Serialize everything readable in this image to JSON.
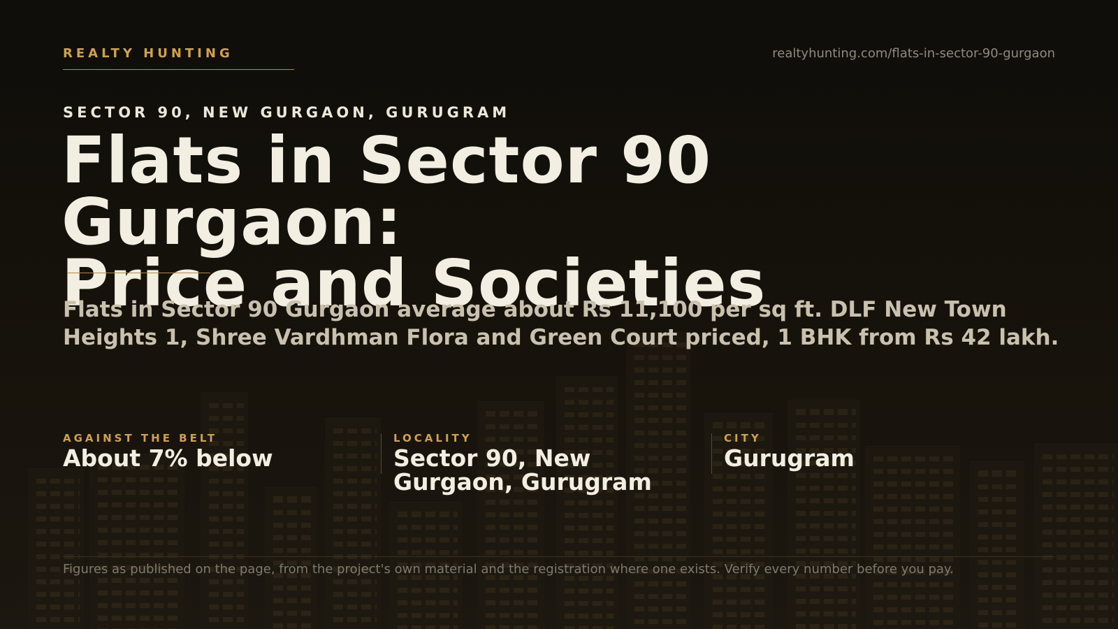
{
  "header": {
    "brand": "REALTY HUNTING",
    "url": "realtyhunting.com/flats-in-sector-90-gurgaon"
  },
  "hero": {
    "eyebrow": "SECTOR 90, NEW GURGAON, GURUGRAM",
    "headline_line1": "Flats in Sector 90 Gurgaon:",
    "headline_line2": "Price and Societies",
    "summary": "Flats in Sector 90 Gurgaon average about Rs 11,100 per sq ft. DLF New Town Heights 1, Shree Vardhman Flora and Green Court priced, 1 BHK from Rs 42 lakh."
  },
  "stats": [
    {
      "label": "AGAINST THE BELT",
      "value": "About 7% below"
    },
    {
      "label": "LOCALITY",
      "value": "Sector 90, New Gurgaon, Gurugram"
    },
    {
      "label": "CITY",
      "value": "Gurugram"
    }
  ],
  "footer": {
    "note": "Figures as published on the page, from the project's own material and the registration where one exists. Verify every number before you pay."
  },
  "colors": {
    "accent": "#cfa24a",
    "background": "#121009",
    "headline": "#f3eee2",
    "muted": "#c9c1ae"
  }
}
